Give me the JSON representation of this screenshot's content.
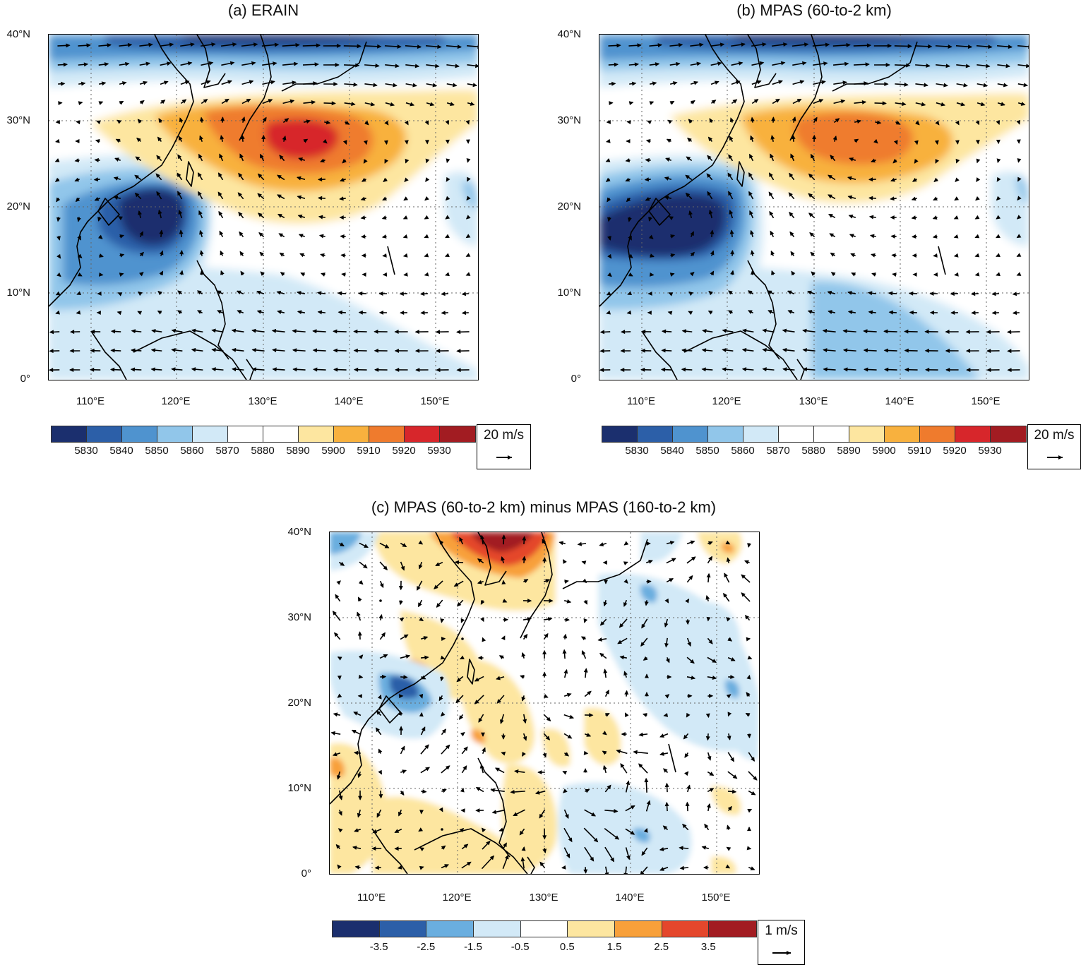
{
  "panels": {
    "a": {
      "title": "(a) ERAIN"
    },
    "b": {
      "title": "(b) MPAS (60-to-2 km)"
    },
    "c": {
      "title": "(c) MPAS (60-to-2 km) minus MPAS (160-to-2 km)"
    }
  },
  "axes": {
    "y_ticks": [
      "40°N",
      "30°N",
      "20°N",
      "10°N",
      "0°"
    ],
    "x_ticks": [
      "110°E",
      "120°E",
      "130°E",
      "140°E",
      "150°E"
    ]
  },
  "colorbar_ab": {
    "colors": [
      "#1b2f6e",
      "#2c5fa8",
      "#4f93cf",
      "#91c6ea",
      "#d2e9f7",
      "#ffffff",
      "#ffffff",
      "#fde6a0",
      "#f8b13e",
      "#ef7b2d",
      "#d7262b",
      "#a21c22"
    ],
    "labels": [
      "5830",
      "5840",
      "5850",
      "5860",
      "5870",
      "5880",
      "5890",
      "5900",
      "5910",
      "5920",
      "5930"
    ]
  },
  "colorbar_c": {
    "colors": [
      "#1b2f6e",
      "#2c5fa8",
      "#6aaedf",
      "#d2e9f7",
      "#ffffff",
      "#fde6a0",
      "#f8a03a",
      "#e4472c",
      "#a21c22"
    ],
    "labels": [
      "-3.5",
      "-2.5",
      "-1.5",
      "-0.5",
      "0.5",
      "1.5",
      "2.5",
      "3.5"
    ]
  },
  "ref_vectors": {
    "ab": "20 m/s",
    "c": "1 m/s"
  }
}
